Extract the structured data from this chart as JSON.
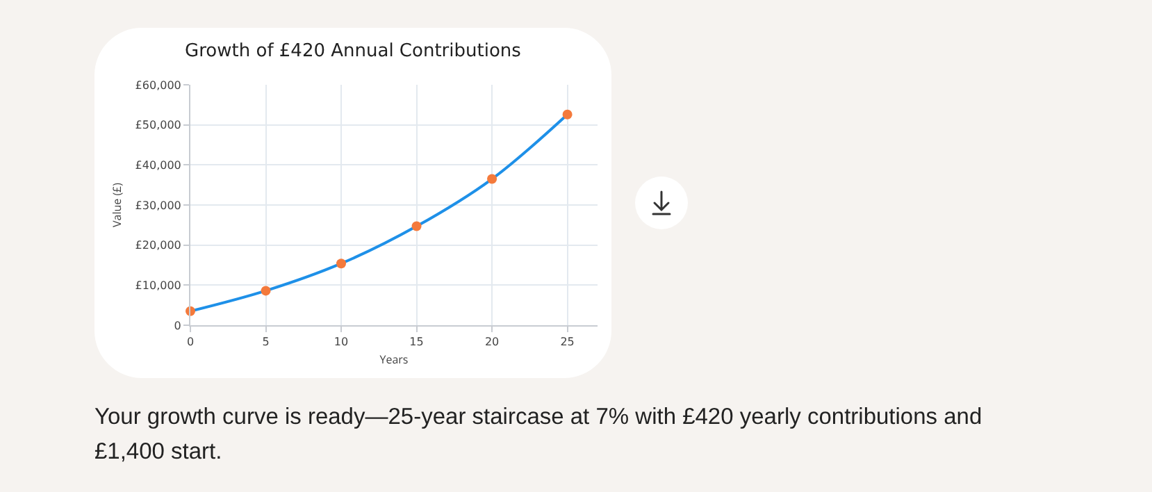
{
  "chart_data": {
    "type": "line",
    "title": "Growth of £420 Annual Contributions",
    "xlabel": "Years",
    "ylabel": "Value (£)",
    "x": [
      0,
      5,
      10,
      15,
      20,
      25
    ],
    "series": [
      {
        "color": "#1e90e8",
        "values": [
          3500,
          8600,
          15400,
          24700,
          36500,
          52600
        ],
        "marker": "none"
      },
      {
        "type": "scatter",
        "color": "#f47a3c",
        "values": [
          3500,
          8600,
          15400,
          24700,
          36500,
          52600
        ],
        "marker": "circle"
      }
    ],
    "xlim": [
      0,
      27
    ],
    "xticks": [
      0,
      5,
      10,
      15,
      20,
      25
    ],
    "ylim": [
      0,
      60000
    ],
    "yticks": [
      {
        "value": 0,
        "label": "0"
      },
      {
        "value": 10000,
        "label": "£10,000"
      },
      {
        "value": 20000,
        "label": "£20,000"
      },
      {
        "value": 30000,
        "label": "£30,000"
      },
      {
        "value": 40000,
        "label": "£40,000"
      },
      {
        "value": 50000,
        "label": "£50,000"
      },
      {
        "value": 60000,
        "label": "£60,000"
      }
    ],
    "grid": true,
    "annotations": [
      "Your growth curve is ready—25-year staircase at 7% with £420 yearly contributions and £1,400 start."
    ]
  }
}
